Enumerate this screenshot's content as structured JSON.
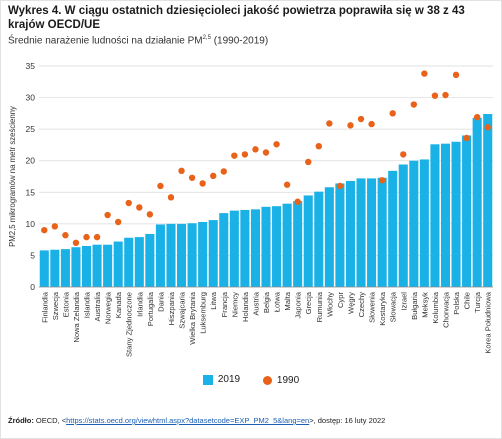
{
  "header": {
    "title": "Wykres 4. W ciągu ostatnich dziesięcioleci jakość powietrza poprawiła się w 38 z 43 krajów OECD/UE",
    "subtitle_pre": "Średnie narażenie ludności na działanie PM",
    "subtitle_sup": "2,5",
    "subtitle_post": " (1990-2019)"
  },
  "source": {
    "label": "Źródło:",
    "pre": " OECD, <",
    "link": "https://stats.oecd.org/viewhtml.aspx?datasetcode=EXP_PM2_5&lang=en",
    "post": ">, dostęp: 16 luty 2022"
  },
  "colors": {
    "bar_2019": "#1ab2e6",
    "dot_1990": "#e8621a",
    "grid": "#d9d9d9",
    "axis": "#888888"
  },
  "chart_data": {
    "type": "bar",
    "ylabel": "PM2,5 mikrogramów na metr sześcienny",
    "ylim": [
      0,
      35
    ],
    "yticks": [
      0,
      5,
      10,
      15,
      20,
      25,
      30,
      35
    ],
    "grid": true,
    "legend_position": "bottom",
    "categories": [
      "Finlandia",
      "Szwecja",
      "Estonia",
      "Nowa Zelandia",
      "Islandia",
      "Australia",
      "Norwegia",
      "Kanada",
      "Stany Zjednoczone",
      "Irlandia",
      "Portugalia",
      "Dania",
      "Hiszpania",
      "Szwajcaria",
      "Wielka Brytania",
      "Luksemburg",
      "Litwa",
      "Francja",
      "Niemcy",
      "Holandia",
      "Austria",
      "Belgia",
      "Łotwa",
      "Malta",
      "Japonia",
      "Grecja",
      "Rumunia",
      "Włochy",
      "Cypr",
      "Węgry",
      "Czechy",
      "Słowenia",
      "Kostaryka",
      "Słowacja",
      "Izrael",
      "Bułgaria",
      "Meksyk",
      "Kolumbia",
      "Chorwacja",
      "Polska",
      "Chile",
      "Turcja",
      "Korea Południowa"
    ],
    "series": [
      {
        "name": "2019",
        "kind": "bar",
        "values": [
          5.8,
          5.9,
          6.0,
          6.3,
          6.5,
          6.7,
          6.7,
          7.2,
          7.8,
          7.9,
          8.4,
          9.9,
          10.0,
          10.0,
          10.1,
          10.3,
          10.6,
          11.7,
          12.1,
          12.2,
          12.3,
          12.7,
          12.8,
          13.2,
          13.6,
          14.5,
          15.1,
          15.8,
          16.4,
          16.8,
          17.2,
          17.2,
          17.3,
          18.4,
          19.4,
          20.0,
          20.2,
          22.6,
          22.7,
          23.0,
          24.0,
          26.8,
          27.4
        ]
      },
      {
        "name": "1990",
        "kind": "dot",
        "values": [
          9.0,
          9.6,
          8.2,
          7.0,
          7.9,
          7.9,
          11.4,
          10.3,
          13.3,
          12.6,
          11.5,
          16.0,
          14.2,
          18.4,
          17.3,
          16.4,
          17.6,
          18.3,
          20.8,
          21.0,
          21.8,
          21.3,
          22.6,
          16.2,
          13.5,
          19.8,
          22.3,
          25.9,
          16.0,
          25.6,
          26.6,
          25.8,
          16.9,
          27.5,
          21.0,
          28.9,
          33.8,
          30.3,
          30.4,
          33.6,
          23.6,
          26.9,
          25.3
        ]
      }
    ]
  }
}
